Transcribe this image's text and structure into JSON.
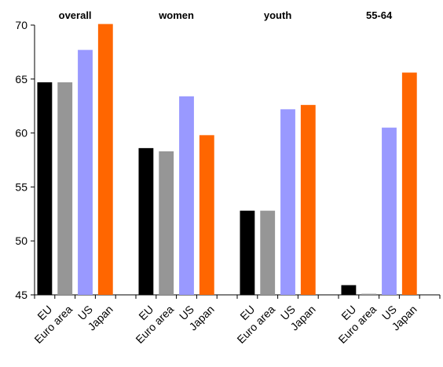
{
  "chart_data": {
    "type": "bar",
    "groups": [
      "overall",
      "women",
      "youth",
      "55-64"
    ],
    "categories": [
      "EU",
      "Euro area",
      "US",
      "Japan"
    ],
    "series": [
      {
        "category": "EU",
        "color": "#000000",
        "values": [
          64.7,
          58.6,
          52.8,
          45.9
        ]
      },
      {
        "category": "Euro area",
        "color": "#969696",
        "values": [
          64.7,
          58.3,
          52.8,
          45.1
        ]
      },
      {
        "category": "US",
        "color": "#9999ff",
        "values": [
          67.7,
          63.4,
          62.2,
          60.5
        ]
      },
      {
        "category": "Japan",
        "color": "#ff6600",
        "values": [
          70.1,
          59.8,
          62.6,
          65.6
        ]
      }
    ],
    "ylim": [
      45,
      70
    ],
    "yticks": [
      45,
      50,
      55,
      60,
      65,
      70
    ],
    "grid": false,
    "legend": "none"
  }
}
